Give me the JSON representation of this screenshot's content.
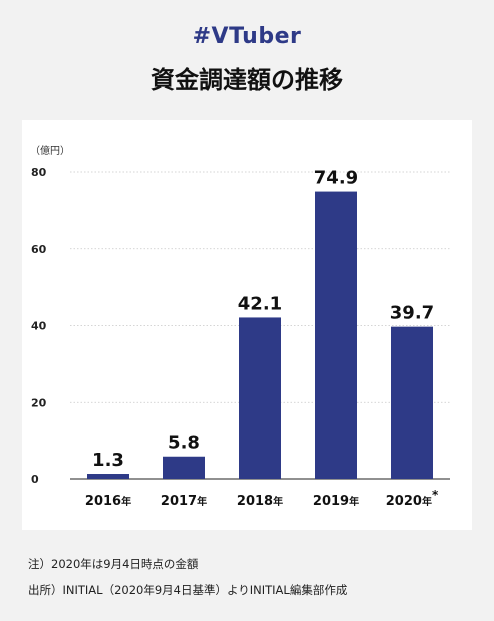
{
  "header": {
    "hashtag": "#VTuber",
    "title": "資金調達額の推移"
  },
  "chart_data": {
    "type": "bar",
    "unit_label": "（億円）",
    "categories": [
      "2016年",
      "2017年",
      "2018年",
      "2019年",
      "2020年"
    ],
    "category_marks": [
      "",
      "",
      "",
      "",
      "*"
    ],
    "values": [
      1.3,
      5.8,
      42.1,
      74.9,
      39.7
    ],
    "value_labels": [
      "1.3",
      "5.8",
      "42.1",
      "74.9",
      "39.7"
    ],
    "yticks": [
      0,
      20,
      40,
      60,
      80
    ],
    "ylim": [
      0,
      80
    ],
    "bar_color": "#2e3a87",
    "grid": true
  },
  "footnotes": {
    "note": "注）2020年は9月4日時点の金額",
    "source": "出所）INITIAL（2020年9月4日基準）よりINITIAL編集部作成"
  }
}
